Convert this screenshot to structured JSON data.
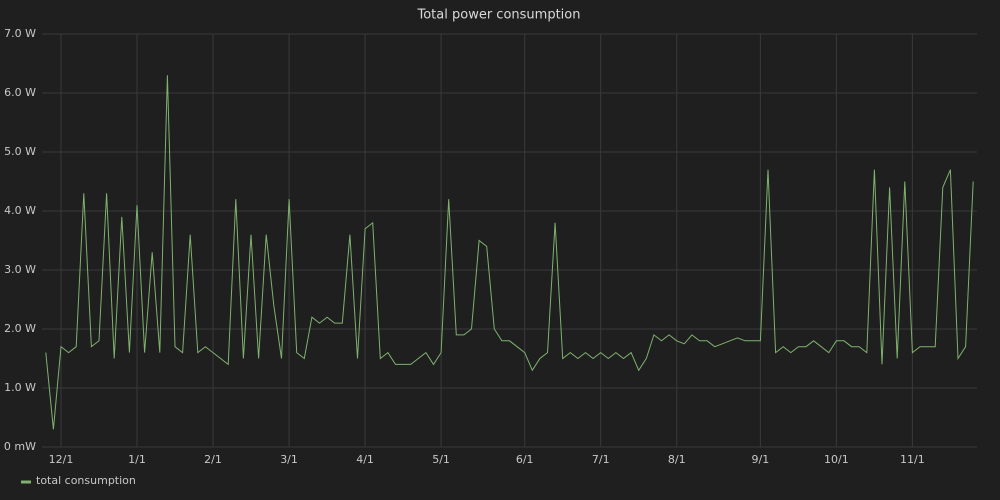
{
  "chart_data": {
    "type": "line",
    "title": "Total power consumption",
    "categories": [
      null,
      null,
      "12/1",
      null,
      null,
      null,
      null,
      null,
      null,
      null,
      null,
      null,
      "1/1",
      null,
      null,
      null,
      null,
      null,
      null,
      null,
      null,
      null,
      "2/1",
      null,
      null,
      null,
      null,
      null,
      null,
      null,
      null,
      null,
      "3/1",
      null,
      null,
      null,
      null,
      null,
      null,
      null,
      null,
      null,
      "4/1",
      null,
      null,
      null,
      null,
      null,
      null,
      null,
      null,
      null,
      "5/1",
      null,
      null,
      null,
      null,
      null,
      null,
      null,
      null,
      null,
      null,
      "6/1",
      null,
      null,
      null,
      null,
      null,
      null,
      null,
      null,
      null,
      "7/1",
      null,
      null,
      null,
      null,
      null,
      null,
      null,
      null,
      null,
      "8/1",
      null,
      null,
      null,
      null,
      null,
      null,
      null,
      null,
      null,
      null,
      "9/1",
      null,
      null,
      null,
      null,
      null,
      null,
      null,
      null,
      null,
      "10/1",
      null,
      null,
      null,
      null,
      null,
      null,
      null,
      null,
      null,
      "11/1",
      null,
      null,
      null,
      null,
      null,
      null,
      null,
      null
    ],
    "series": [
      {
        "name": "total consumption",
        "color": "#7eb26d",
        "values": [
          1.6,
          0.3,
          1.7,
          1.6,
          1.7,
          4.3,
          1.7,
          1.8,
          4.3,
          1.5,
          3.9,
          1.6,
          4.1,
          1.6,
          3.3,
          1.6,
          6.3,
          1.7,
          1.6,
          3.6,
          1.6,
          1.7,
          1.6,
          1.5,
          1.4,
          4.2,
          1.5,
          3.6,
          1.5,
          3.6,
          2.4,
          1.5,
          4.2,
          1.6,
          1.5,
          2.2,
          2.1,
          2.2,
          2.1,
          2.1,
          3.6,
          1.5,
          3.7,
          3.8,
          1.5,
          1.6,
          1.4,
          1.4,
          1.4,
          1.5,
          1.6,
          1.4,
          1.6,
          4.2,
          1.9,
          1.9,
          2.0,
          3.5,
          3.4,
          2.0,
          1.8,
          1.8,
          1.7,
          1.6,
          1.3,
          1.5,
          1.6,
          3.8,
          1.5,
          1.6,
          1.5,
          1.6,
          1.5,
          1.6,
          1.5,
          1.6,
          1.5,
          1.6,
          1.3,
          1.5,
          1.9,
          1.8,
          1.9,
          1.8,
          1.75,
          1.9,
          1.8,
          1.8,
          1.7,
          1.75,
          1.8,
          1.85,
          1.8,
          1.8,
          1.8,
          4.7,
          1.6,
          1.7,
          1.6,
          1.7,
          1.7,
          1.8,
          1.7,
          1.6,
          1.8,
          1.8,
          1.7,
          1.7,
          1.6,
          4.7,
          1.4,
          4.4,
          1.5,
          4.5,
          1.6,
          1.7,
          1.7,
          1.7,
          4.4,
          4.7,
          1.5,
          1.7,
          4.5
        ]
      }
    ],
    "ylim": [
      0,
      7
    ],
    "yticks": [
      {
        "value": 0,
        "label": "0 mW"
      },
      {
        "value": 1,
        "label": "1.0 W"
      },
      {
        "value": 2,
        "label": "2.0 W"
      },
      {
        "value": 3,
        "label": "3.0 W"
      },
      {
        "value": 4,
        "label": "4.0 W"
      },
      {
        "value": 5,
        "label": "5.0 W"
      },
      {
        "value": 6,
        "label": "6.0 W"
      },
      {
        "value": 7,
        "label": "7.0 W"
      }
    ],
    "grid": true
  }
}
